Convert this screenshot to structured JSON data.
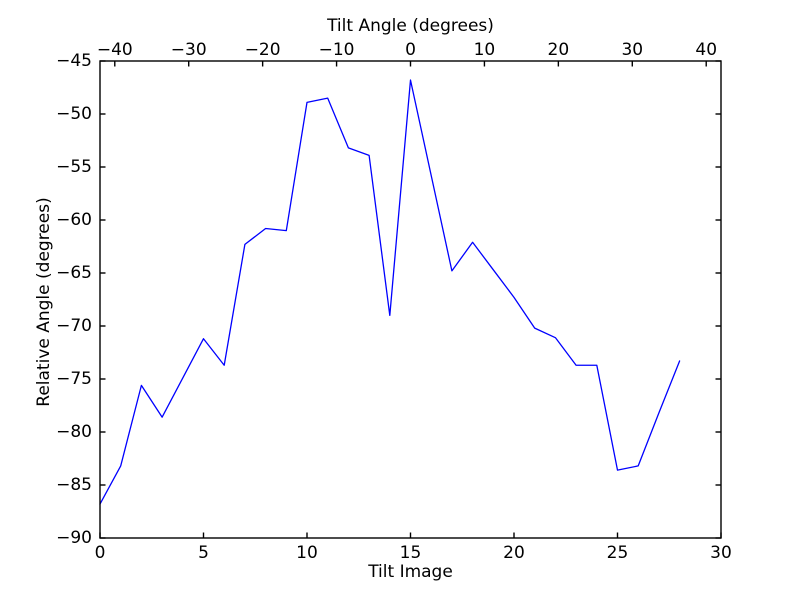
{
  "figure": {
    "background": "#ffffff",
    "spine_color": "#000000",
    "tick_color": "#000000",
    "text_color": "#000000"
  },
  "chart_data": {
    "type": "line",
    "title": "",
    "grid": false,
    "legend": null,
    "marker": "none",
    "line_style": "solid",
    "axes": {
      "x_bottom": {
        "label": "Tilt Image",
        "range": [
          0,
          30
        ],
        "ticks": [
          0,
          5,
          10,
          15,
          20,
          25,
          30
        ],
        "tick_labels": [
          "0",
          "5",
          "10",
          "15",
          "20",
          "25",
          "30"
        ]
      },
      "x_top": {
        "label": "Tilt Angle (degrees)",
        "range": [
          -42,
          42
        ],
        "ticks": [
          -40,
          -30,
          -20,
          -10,
          0,
          10,
          20,
          30,
          40
        ],
        "tick_labels": [
          "−40",
          "−30",
          "−20",
          "−10",
          "0",
          "10",
          "20",
          "30",
          "40"
        ]
      },
      "y_left": {
        "label": "Relative Angle (degrees)",
        "range": [
          -90,
          -45
        ],
        "ticks": [
          -45,
          -50,
          -55,
          -60,
          -65,
          -70,
          -75,
          -80,
          -85,
          -90
        ],
        "tick_labels": [
          "−45",
          "−50",
          "−55",
          "−60",
          "−65",
          "−70",
          "−75",
          "−80",
          "−85",
          "−90"
        ]
      }
    },
    "series": [
      {
        "color": "#0000ff",
        "x": [
          0,
          1,
          2,
          3,
          4,
          5,
          6,
          7,
          8,
          9,
          10,
          11,
          12,
          13,
          14,
          15,
          16,
          17,
          18,
          19,
          20,
          21,
          22,
          23,
          24,
          25,
          26,
          27,
          28
        ],
        "y": [
          -86.8,
          -83.2,
          -75.6,
          -78.6,
          -74.9,
          -71.2,
          -73.7,
          -62.3,
          -60.8,
          -61.0,
          -48.9,
          -48.5,
          -53.2,
          -53.9,
          -69.0,
          -46.8,
          -55.8,
          -64.8,
          -62.1,
          -64.7,
          -67.3,
          -70.2,
          -71.1,
          -73.7,
          -73.7,
          -83.6,
          -83.2,
          -78.2,
          -73.3
        ]
      }
    ]
  }
}
